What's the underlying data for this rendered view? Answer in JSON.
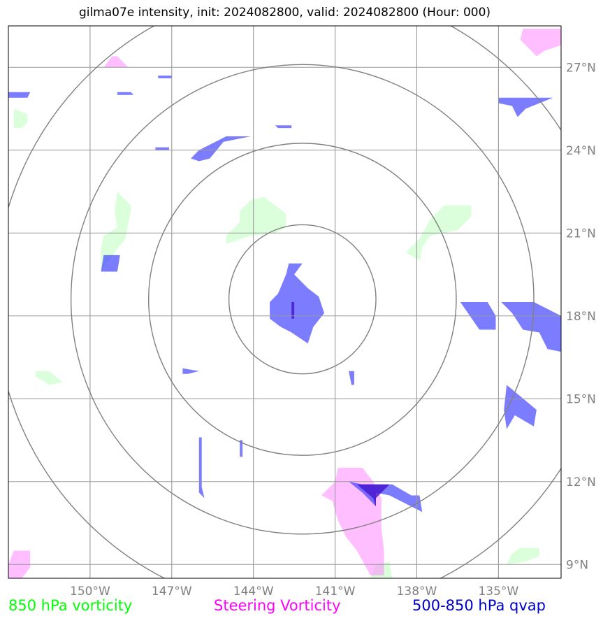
{
  "title": "gilma07e intensity, init: 2024082800, valid: 2024082800 (Hour: 000)",
  "legend": [
    {
      "label": "850 hPa vorticity",
      "color": "#00ff00"
    },
    {
      "label": "Steering Vorticity",
      "color": "#ff00ff"
    },
    {
      "label": "500-850 hPa qvap",
      "color": "#0000cc"
    }
  ],
  "chart_data": {
    "type": "map",
    "lon_range": [
      -153.0,
      -132.7
    ],
    "lat_range": [
      8.5,
      28.5
    ],
    "x_ticks": [
      -150,
      -147,
      -144,
      -141,
      -138,
      -135
    ],
    "x_tick_labels": [
      "150°W",
      "147°W",
      "144°W",
      "141°W",
      "138°W",
      "135°W"
    ],
    "y_ticks": [
      9,
      12,
      15,
      18,
      21,
      24,
      27
    ],
    "y_tick_labels": [
      "9°N",
      "12°N",
      "15°N",
      "18°N",
      "21°N",
      "24°N",
      "27°N"
    ],
    "grid": true,
    "range_rings": {
      "center_lon": -142.2,
      "center_lat": 18.6,
      "radii_deg": [
        2.7,
        5.65,
        8.5,
        11.3
      ]
    },
    "colors": {
      "vort850": "#7dff7d",
      "steering": "#ff7dff",
      "qvap": "#4444ff",
      "qvap_dark": "#4411cc",
      "grid": "#999999",
      "ring": "#808080"
    },
    "fields": {
      "qvap": [
        [
          [
            -142.7,
            19.9
          ],
          [
            -142.2,
            19.9
          ],
          [
            -142.5,
            19.5
          ],
          [
            -142.0,
            19.0
          ],
          [
            -141.6,
            18.7
          ],
          [
            -141.4,
            18.1
          ],
          [
            -141.8,
            17.6
          ],
          [
            -142.0,
            17.0
          ],
          [
            -142.6,
            17.4
          ],
          [
            -143.0,
            17.6
          ],
          [
            -143.4,
            17.9
          ],
          [
            -143.4,
            18.5
          ],
          [
            -143.1,
            18.8
          ],
          [
            -142.8,
            19.5
          ]
        ],
        [
          [
            -146.0,
            24.0
          ],
          [
            -145.0,
            24.5
          ],
          [
            -144.1,
            24.5
          ],
          [
            -145.1,
            24.3
          ],
          [
            -145.6,
            23.7
          ],
          [
            -146.0,
            23.6
          ],
          [
            -146.3,
            23.7
          ]
        ],
        [
          [
            -149.5,
            20.2
          ],
          [
            -148.9,
            20.2
          ],
          [
            -149.0,
            19.6
          ],
          [
            -149.6,
            19.6
          ]
        ],
        [
          [
            -135.7,
            17.5
          ],
          [
            -135.1,
            17.5
          ],
          [
            -135.1,
            18.0
          ],
          [
            -135.4,
            18.5
          ],
          [
            -136.4,
            18.5
          ]
        ],
        [
          [
            -133.7,
            18.5
          ],
          [
            -132.7,
            18.0
          ],
          [
            -132.7,
            16.7
          ],
          [
            -133.2,
            16.8
          ],
          [
            -133.5,
            17.4
          ],
          [
            -134.1,
            17.5
          ],
          [
            -134.5,
            18.1
          ],
          [
            -134.9,
            18.5
          ]
        ],
        [
          [
            -134.7,
            15.5
          ],
          [
            -133.6,
            14.6
          ],
          [
            -133.7,
            14.0
          ],
          [
            -134.4,
            14.4
          ],
          [
            -134.7,
            13.9
          ],
          [
            -134.8,
            14.6
          ]
        ],
        [
          [
            -140.0,
            11.9
          ],
          [
            -138.9,
            11.9
          ],
          [
            -138.2,
            11.5
          ],
          [
            -137.9,
            11.5
          ],
          [
            -137.8,
            10.9
          ],
          [
            -138.4,
            11.2
          ],
          [
            -139.0,
            11.5
          ],
          [
            -139.5,
            11.6
          ],
          [
            -139.5,
            11.1
          ],
          [
            -140.0,
            11.6
          ],
          [
            -140.5,
            12.0
          ]
        ],
        [
          [
            -135.0,
            25.9
          ],
          [
            -133.0,
            25.9
          ],
          [
            -133.5,
            25.7
          ],
          [
            -134.0,
            25.5
          ],
          [
            -134.3,
            25.2
          ],
          [
            -134.5,
            25.6
          ],
          [
            -135.0,
            25.7
          ]
        ],
        [
          [
            -146.0,
            13.6
          ],
          [
            -145.9,
            13.6
          ],
          [
            -145.9,
            11.8
          ],
          [
            -145.8,
            11.4
          ],
          [
            -146.0,
            11.6
          ]
        ],
        [
          [
            -153.0,
            26.1
          ],
          [
            -152.2,
            26.1
          ],
          [
            -152.3,
            25.9
          ],
          [
            -153.0,
            25.9
          ]
        ],
        [
          [
            -146.6,
            16.1
          ],
          [
            -146.0,
            16.0
          ],
          [
            -146.4,
            15.9
          ],
          [
            -146.6,
            15.9
          ]
        ],
        [
          [
            -140.5,
            16.0
          ],
          [
            -140.3,
            16.0
          ],
          [
            -140.3,
            15.5
          ],
          [
            -140.4,
            15.5
          ]
        ],
        [
          [
            -144.5,
            13.5
          ],
          [
            -144.4,
            13.5
          ],
          [
            -144.4,
            12.9
          ],
          [
            -144.5,
            12.9
          ]
        ],
        [
          [
            -143.2,
            24.9
          ],
          [
            -142.6,
            24.9
          ],
          [
            -142.6,
            24.8
          ],
          [
            -143.1,
            24.8
          ]
        ],
        [
          [
            -149.0,
            26.1
          ],
          [
            -148.5,
            26.1
          ],
          [
            -148.4,
            26.0
          ],
          [
            -149.0,
            26.0
          ]
        ],
        [
          [
            -147.6,
            24.0
          ],
          [
            -147.1,
            24.0
          ],
          [
            -147.1,
            24.1
          ],
          [
            -147.6,
            24.1
          ]
        ],
        [
          [
            -147.5,
            26.7
          ],
          [
            -147.0,
            26.7
          ],
          [
            -147.0,
            26.6
          ],
          [
            -147.5,
            26.6
          ]
        ]
      ],
      "qvap_dark": [
        [
          [
            -139.0,
            11.9
          ],
          [
            -140.2,
            11.9
          ],
          [
            -139.6,
            11.4
          ],
          [
            -139.5,
            11.1
          ],
          [
            -139.5,
            11.4
          ]
        ],
        [
          [
            -142.6,
            18.5
          ],
          [
            -142.5,
            18.5
          ],
          [
            -142.5,
            17.9
          ],
          [
            -142.6,
            17.9
          ]
        ]
      ],
      "steering": [
        [
          [
            -140.9,
            12.5
          ],
          [
            -140.0,
            12.5
          ],
          [
            -139.6,
            12.0
          ],
          [
            -139.3,
            11.4
          ],
          [
            -139.3,
            10.3
          ],
          [
            -139.2,
            9.5
          ],
          [
            -139.2,
            8.6
          ],
          [
            -139.7,
            8.6
          ],
          [
            -140.2,
            9.5
          ],
          [
            -140.6,
            10.0
          ],
          [
            -140.9,
            10.6
          ],
          [
            -141.1,
            11.3
          ],
          [
            -141.5,
            11.5
          ],
          [
            -141.0,
            12.0
          ]
        ],
        [
          [
            -134.1,
            28.4
          ],
          [
            -132.7,
            28.4
          ],
          [
            -132.7,
            27.8
          ],
          [
            -133.3,
            27.6
          ],
          [
            -133.6,
            27.4
          ],
          [
            -134.0,
            27.8
          ],
          [
            -134.2,
            28.0
          ]
        ],
        [
          [
            -152.8,
            9.5
          ],
          [
            -152.2,
            9.5
          ],
          [
            -152.2,
            8.9
          ],
          [
            -152.5,
            8.5
          ],
          [
            -153.0,
            8.5
          ],
          [
            -153.0,
            9.0
          ]
        ],
        [
          [
            -149.5,
            27.0
          ],
          [
            -148.6,
            27.0
          ],
          [
            -149.0,
            27.4
          ],
          [
            -149.2,
            27.4
          ]
        ]
      ],
      "vort850": [
        [
          [
            -149.6,
            19.6
          ],
          [
            -149.1,
            20.3
          ],
          [
            -148.7,
            20.8
          ],
          [
            -148.5,
            21.8
          ],
          [
            -148.5,
            22.0
          ],
          [
            -149.0,
            22.5
          ],
          [
            -149.1,
            21.8
          ],
          [
            -149.0,
            21.2
          ],
          [
            -149.5,
            20.9
          ],
          [
            -149.6,
            20.4
          ]
        ],
        [
          [
            -145.0,
            20.6
          ],
          [
            -145.0,
            20.9
          ],
          [
            -144.5,
            21.4
          ],
          [
            -144.5,
            21.8
          ],
          [
            -144.1,
            22.2
          ],
          [
            -143.6,
            22.3
          ],
          [
            -142.8,
            21.7
          ],
          [
            -142.8,
            21.2
          ],
          [
            -143.2,
            21.0
          ],
          [
            -144.1,
            20.9
          ]
        ],
        [
          [
            -138.4,
            20.3
          ],
          [
            -137.9,
            20.8
          ],
          [
            -137.5,
            21.5
          ],
          [
            -137.0,
            22.0
          ],
          [
            -136.0,
            22.0
          ],
          [
            -136.0,
            21.6
          ],
          [
            -136.5,
            21.1
          ],
          [
            -137.5,
            20.9
          ],
          [
            -137.8,
            20.5
          ],
          [
            -137.9,
            20.0
          ]
        ],
        [
          [
            -152.8,
            25.5
          ],
          [
            -152.3,
            25.3
          ],
          [
            -152.3,
            25.0
          ],
          [
            -152.5,
            24.8
          ],
          [
            -152.8,
            24.8
          ]
        ],
        [
          [
            -152.0,
            16.0
          ],
          [
            -151.5,
            16.0
          ],
          [
            -151.0,
            15.6
          ],
          [
            -151.5,
            15.5
          ],
          [
            -152.0,
            15.8
          ]
        ],
        [
          [
            -134.7,
            9.0
          ],
          [
            -134.0,
            9.1
          ],
          [
            -133.5,
            9.3
          ],
          [
            -133.5,
            9.6
          ],
          [
            -134.2,
            9.6
          ],
          [
            -134.5,
            9.4
          ]
        ],
        [
          [
            -139.7,
            8.5
          ],
          [
            -139.5,
            9.0
          ],
          [
            -139.0,
            9.1
          ],
          [
            -138.9,
            8.5
          ]
        ]
      ]
    }
  }
}
